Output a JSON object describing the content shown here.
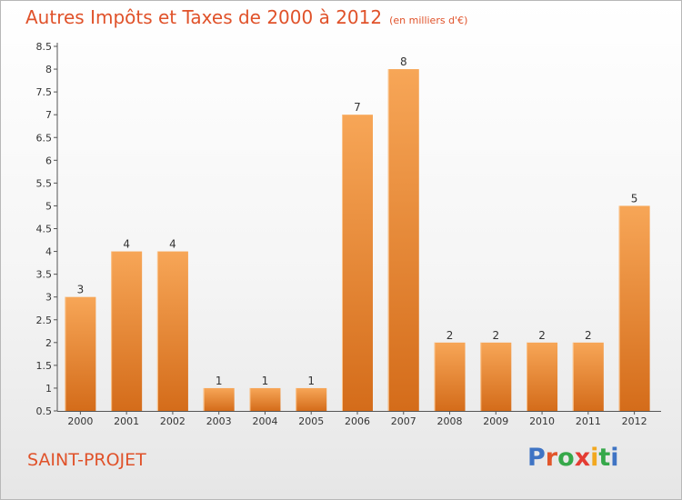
{
  "header": {
    "title": "Autres Impôts et Taxes de 2000 à 2012",
    "unit": "(en milliers d'€)"
  },
  "footer": {
    "commune": "SAINT-PROJET",
    "brand": "Proxiti",
    "brand_colors": [
      "#3f74c4",
      "#e1562b",
      "#36a84a",
      "#e43c33",
      "#f2a81f",
      "#36a84a",
      "#3f74c4"
    ]
  },
  "colors": {
    "bar_top": "#f7a657",
    "bar_bottom": "#d46c1a",
    "axis": "#555555",
    "label": "#333333"
  },
  "chart_data": {
    "type": "bar",
    "title": "Autres Impôts et Taxes de 2000 à 2012",
    "categories": [
      "2000",
      "2001",
      "2002",
      "2003",
      "2004",
      "2005",
      "2006",
      "2007",
      "2008",
      "2009",
      "2010",
      "2011",
      "2012"
    ],
    "values": [
      3,
      4,
      4,
      1,
      1,
      1,
      7,
      8,
      2,
      2,
      2,
      2,
      5
    ],
    "data_labels": [
      "3",
      "4",
      "4",
      "1",
      "1",
      "1",
      "7",
      "8",
      "2",
      "2",
      "2",
      "2",
      "5"
    ],
    "yticks": [
      "0.5",
      "1",
      "1.5",
      "2",
      "2.5",
      "3",
      "3.5",
      "4",
      "4.5",
      "5",
      "5.5",
      "6",
      "6.5",
      "7",
      "7.5",
      "8",
      "8.5"
    ],
    "ylim": [
      0.5,
      8.5
    ],
    "grid": false,
    "legend": "none",
    "xlabel": "",
    "ylabel": ""
  }
}
